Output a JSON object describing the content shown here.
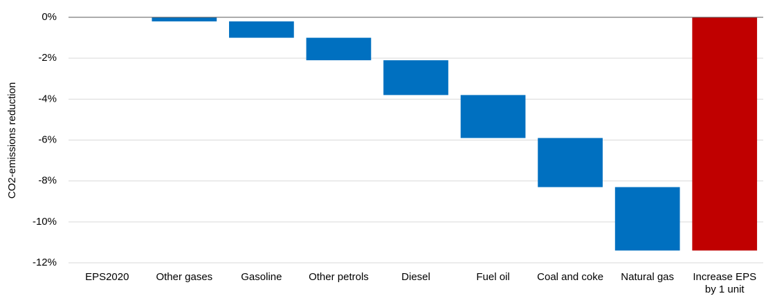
{
  "chart_data": {
    "type": "waterfall",
    "ylabel": "CO2-emissions reduction",
    "categories": [
      "EPS2020",
      "Other gases",
      "Gasoline",
      "Other petrols",
      "Diesel",
      "Fuel oil",
      "Coal and coke",
      "Natural gas",
      "Increase EPS by 1 unit"
    ],
    "values": [
      0,
      -0.2,
      -0.8,
      -1.1,
      -1.7,
      -2.1,
      -2.4,
      -3.1,
      -11.4
    ],
    "is_total": [
      false,
      false,
      false,
      false,
      false,
      false,
      false,
      false,
      true
    ],
    "color": "#0070c0",
    "total_color": "#c00000",
    "ylim": [
      -12,
      0
    ],
    "yticks": [
      {
        "value": 0,
        "label": "0%"
      },
      {
        "value": -2,
        "label": "-2%"
      },
      {
        "value": -4,
        "label": "-4%"
      },
      {
        "value": -6,
        "label": "-6%"
      },
      {
        "value": -8,
        "label": "-8%"
      },
      {
        "value": -10,
        "label": "-10%"
      },
      {
        "value": -12,
        "label": "-12%"
      }
    ],
    "grid": true
  }
}
